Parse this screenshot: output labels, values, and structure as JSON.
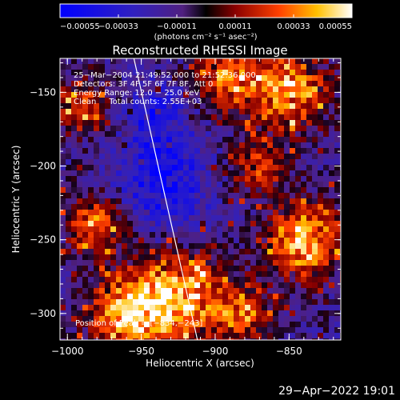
{
  "chart_data": {
    "type": "heatmap",
    "title": "Reconstructed RHESSI Image",
    "xlabel": "Heliocentric X (arcsec)",
    "ylabel": "Heliocentric Y (arcsec)",
    "xlim": [
      -1005,
      -815
    ],
    "ylim": [
      -318,
      -127
    ],
    "x_ticks": [
      -1000,
      -950,
      -900,
      -850
    ],
    "y_ticks": [
      -300,
      -250,
      -200,
      -150
    ],
    "x_tick_labels": [
      "−1000",
      "−950",
      "−900",
      "−850"
    ],
    "y_tick_labels": [
      "−300",
      "−250",
      "−200",
      "−150"
    ],
    "colorbar": {
      "range": [
        -0.00055,
        0.00055
      ],
      "ticks": [
        -0.00055,
        -0.00033,
        -0.00011,
        0.00011,
        0.00033,
        0.00055
      ],
      "tick_labels": [
        "−0.00055",
        "−0.00033",
        "−0.00011",
        "0.00011",
        "0.00033",
        "0.00055"
      ],
      "units_label": "(photons cm⁻² s⁻¹ asec⁻²)"
    },
    "annotations": [
      "25−Mar−2004 21:49:52.000 to 21:52:36.000",
      "Detectors: 3F 4F 5F 6F 7F 8F, Att 0",
      "Energy Range: 12.0 − 25.0 keV",
      "Clean     Total counts: 2.55E+03"
    ],
    "peak_label": "Position of Peak = [−834,−243]",
    "peak": [
      -834,
      -243
    ],
    "limb_line": [
      [
        -955,
        -127
      ],
      [
        -912,
        -318
      ]
    ],
    "bright_regions": [
      {
        "x": -925,
        "y": -290,
        "level": 0.95,
        "radius": 30
      },
      {
        "x": -960,
        "y": -300,
        "level": 0.85,
        "radius": 25
      },
      {
        "x": -840,
        "y": -250,
        "level": 1.0,
        "radius": 24
      },
      {
        "x": -850,
        "y": -150,
        "level": 0.85,
        "radius": 25
      },
      {
        "x": -890,
        "y": -140,
        "level": 0.75,
        "radius": 22
      },
      {
        "x": -980,
        "y": -240,
        "level": 0.7,
        "radius": 20
      },
      {
        "x": -990,
        "y": -160,
        "level": 0.6,
        "radius": 18
      },
      {
        "x": -870,
        "y": -200,
        "level": 0.55,
        "radius": 18
      },
      {
        "x": -880,
        "y": -300,
        "level": 0.6,
        "radius": 20
      }
    ],
    "dark_regions": [
      {
        "x": -935,
        "y": -210,
        "level": -0.6,
        "radius": 30
      },
      {
        "x": -940,
        "y": -165,
        "level": -0.45,
        "radius": 20
      }
    ]
  },
  "footer": {
    "timestamp": "29−Apr−2022 19:01"
  }
}
